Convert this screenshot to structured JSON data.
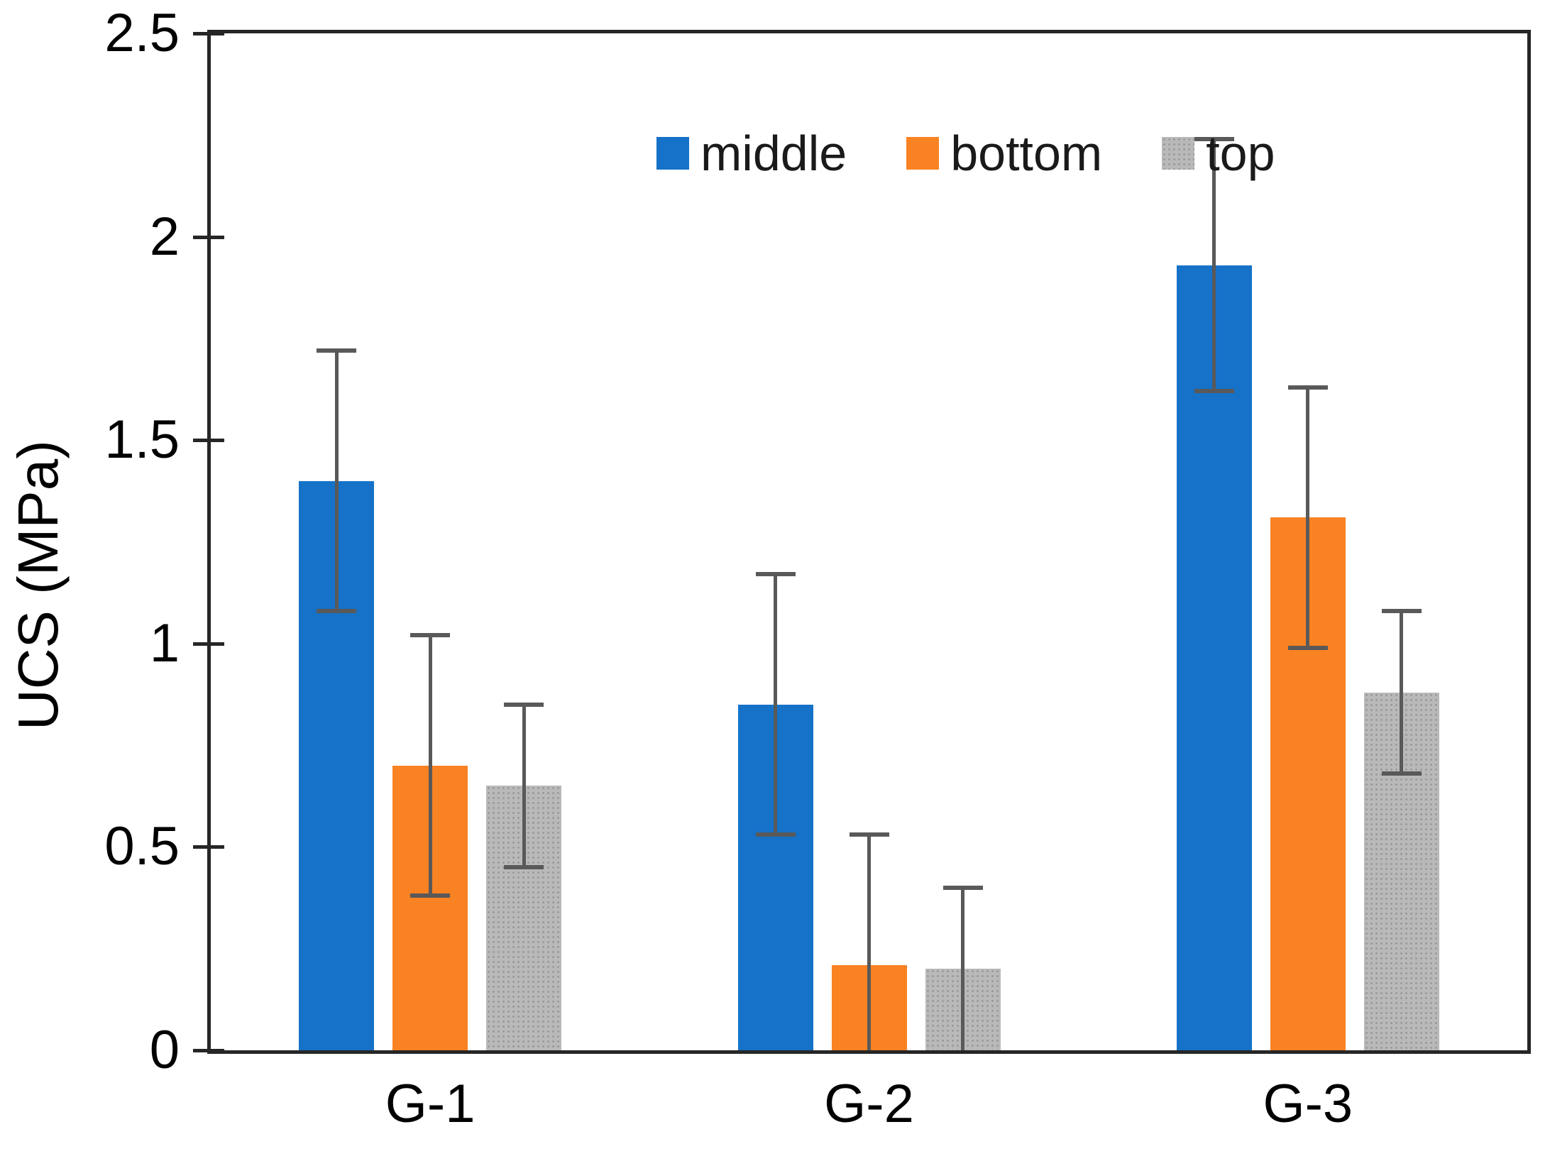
{
  "figure": {
    "kind": "static-bar-chart-figure"
  },
  "chart_data": {
    "type": "bar",
    "title": "",
    "xlabel": "",
    "ylabel": "UCS (MPa)",
    "ylim": [
      0,
      2.5
    ],
    "yticks": [
      2.5,
      2,
      1.5,
      1,
      0.5,
      0
    ],
    "ytick_labels": [
      "2.5",
      "2",
      "1.5",
      "1",
      "0.5",
      "0"
    ],
    "categories": [
      "G-1",
      "G-2",
      "G-3"
    ],
    "grid": false,
    "legend_position": "top-center",
    "error_bars": true,
    "error_bar_color": "#595959",
    "axis_color": "#262626",
    "text_color": "#000000",
    "series": [
      {
        "name": "middle",
        "color": "#1572C8",
        "fill": "solid",
        "values": [
          1.4,
          0.85,
          1.93
        ],
        "errors": [
          0.32,
          0.32,
          0.31
        ]
      },
      {
        "name": "bottom",
        "color": "#F98222",
        "fill": "solid",
        "values": [
          0.7,
          0.21,
          1.31
        ],
        "errors": [
          0.32,
          0.32,
          0.32
        ]
      },
      {
        "name": "top",
        "color": "#B9B9B9",
        "fill": "dotted",
        "dot_color": "#999999",
        "values": [
          0.65,
          0.2,
          0.88
        ],
        "errors": [
          0.2,
          0.2,
          0.2
        ]
      }
    ]
  }
}
